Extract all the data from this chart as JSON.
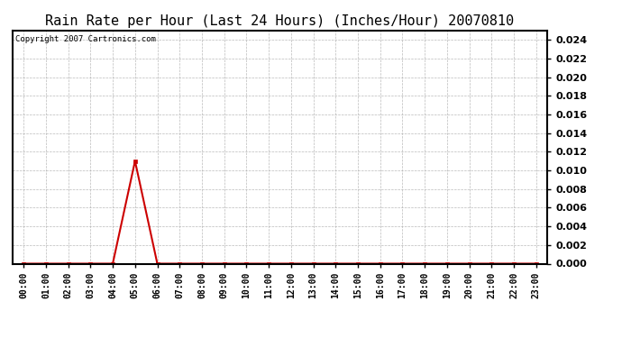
{
  "title": "Rain Rate per Hour (Last 24 Hours) (Inches/Hour) 20070810",
  "copyright_text": "Copyright 2007 Cartronics.com",
  "x_labels": [
    "00:00",
    "01:00",
    "02:00",
    "03:00",
    "04:00",
    "05:00",
    "06:00",
    "07:00",
    "08:00",
    "09:00",
    "10:00",
    "11:00",
    "12:00",
    "13:00",
    "14:00",
    "15:00",
    "16:00",
    "17:00",
    "18:00",
    "19:00",
    "20:00",
    "21:00",
    "22:00",
    "23:00"
  ],
  "y_values": [
    0.0,
    0.0,
    0.0,
    0.0,
    0.0,
    0.011,
    0.0,
    0.0,
    0.0,
    0.0,
    0.0,
    0.0,
    0.0,
    0.0,
    0.0,
    0.0,
    0.0,
    0.0,
    0.0,
    0.0,
    0.0,
    0.0,
    0.0,
    0.0
  ],
  "line_color": "#cc0000",
  "marker": "s",
  "marker_size": 3,
  "ylim": [
    0.0,
    0.025
  ],
  "yticks": [
    0.0,
    0.002,
    0.004,
    0.006,
    0.008,
    0.01,
    0.012,
    0.014,
    0.016,
    0.018,
    0.02,
    0.022,
    0.024
  ],
  "background_color": "#ffffff",
  "plot_bg_color": "#ffffff",
  "grid_color": "#aaaaaa",
  "title_fontsize": 11,
  "copyright_fontsize": 6.5,
  "tick_fontsize": 7,
  "ytick_fontsize": 8,
  "border_color": "#000000",
  "linewidth": 1.5
}
